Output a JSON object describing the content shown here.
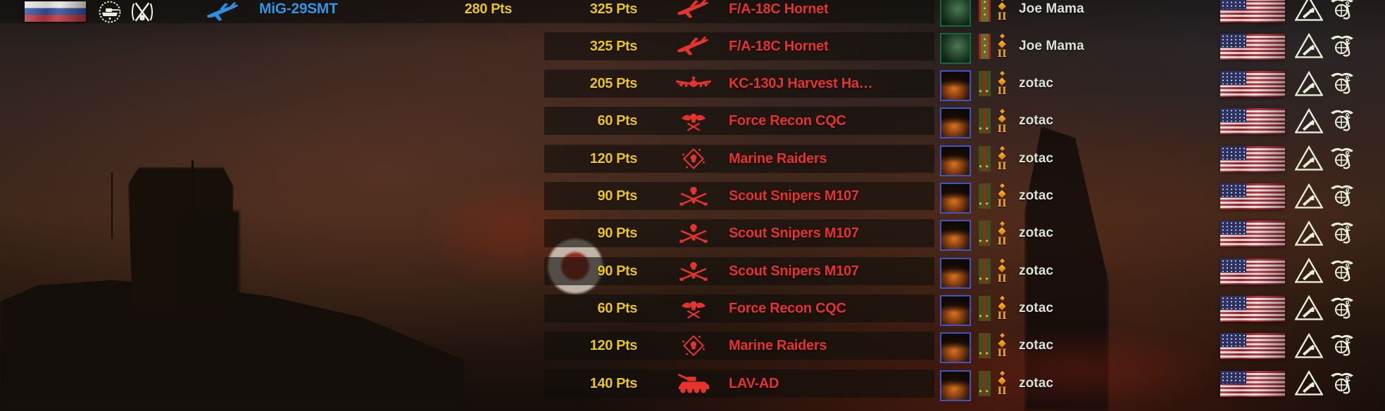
{
  "hud": {
    "killer": {
      "faction_flag": "russia",
      "emblem_1": "armored-division-wreath",
      "emblem_2": "crossed-rifles-wreath",
      "unit_icon": "mig-29-icon",
      "unit_name": "MiG-29SMT",
      "points": "280 Pts"
    },
    "victim_faction": {
      "flag": "usa",
      "emblem_1": "armor-triangle",
      "emblem_2": "usmc-eagle-globe-anchor"
    },
    "players": {
      "joe-mama": {
        "name": "Joe Mama",
        "rank": "three-stars",
        "diamonds": 2,
        "tier": "II"
      },
      "zotac": {
        "name": "zotac",
        "rank": "two-stars",
        "diamonds": 2,
        "tier": "II"
      }
    },
    "kills": [
      {
        "points": "325 Pts",
        "unit": "F/A-18C Hornet",
        "icon": "fighter-jet-icon",
        "player": "joe-mama"
      },
      {
        "points": "325 Pts",
        "unit": "F/A-18C Hornet",
        "icon": "fighter-jet-icon",
        "player": "joe-mama"
      },
      {
        "points": "205 Pts",
        "unit": "KC-130J Harvest Ha…",
        "icon": "transport-plane-icon",
        "player": "zotac"
      },
      {
        "points": "60 Pts",
        "unit": "Force Recon CQC",
        "icon": "force-recon-icon",
        "player": "zotac"
      },
      {
        "points": "120 Pts",
        "unit": "Marine Raiders",
        "icon": "marine-raiders-icon",
        "player": "zotac"
      },
      {
        "points": "90 Pts",
        "unit": "Scout Snipers M107",
        "icon": "scout-snipers-icon",
        "player": "zotac"
      },
      {
        "points": "90 Pts",
        "unit": "Scout Snipers M107",
        "icon": "scout-snipers-icon",
        "player": "zotac"
      },
      {
        "points": "90 Pts",
        "unit": "Scout Snipers M107",
        "icon": "scout-snipers-icon",
        "player": "zotac"
      },
      {
        "points": "60 Pts",
        "unit": "Force Recon CQC",
        "icon": "force-recon-icon",
        "player": "zotac"
      },
      {
        "points": "120 Pts",
        "unit": "Marine Raiders",
        "icon": "marine-raiders-icon",
        "player": "zotac"
      },
      {
        "points": "140 Pts",
        "unit": "LAV-AD",
        "icon": "lav-ad-icon",
        "player": "zotac"
      }
    ]
  },
  "colors": {
    "points_text": "#ecc41e",
    "enemy_unit_text": "#e5342e",
    "killer_unit_text": "#2d97e8",
    "player_name_text": "#dce1d6",
    "emblem_cream": "#e9efdc",
    "tier_gold": "#f0a81c"
  }
}
